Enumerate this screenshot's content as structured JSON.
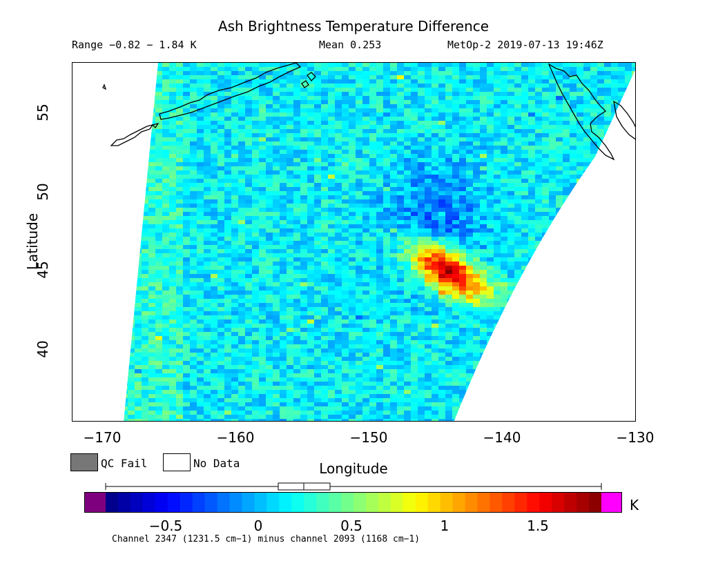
{
  "title": "Ash Brightness Temperature Difference",
  "range_text": "Range −0.82 − 1.84 K",
  "mean_text": "Mean 0.253",
  "satellite_text": "MetOp-2 2019-07-13 19:46Z",
  "map": {
    "lon_range": [
      -172.5,
      -130
    ],
    "lat_range": [
      35.5,
      58.2
    ],
    "x_ticks": [
      "−170",
      "−160",
      "−150",
      "−140",
      "−130"
    ],
    "x_tick_values": [
      -170,
      -160,
      -150,
      -140,
      -130
    ],
    "y_ticks": [
      "55",
      "50",
      "45",
      "40"
    ],
    "y_tick_values": [
      55,
      50,
      45,
      40
    ],
    "xlabel": "Longitude",
    "ylabel": "Latitude",
    "ash_feature_center": {
      "lon": -144.5,
      "lat": 45.2,
      "peak_value": 1.84
    }
  },
  "legend": {
    "qc_fail_label": "QC Fail",
    "qc_fail_color": "#777777",
    "no_data_label": "No Data",
    "no_data_color": "#ffffff"
  },
  "colorbar": {
    "ticks": [
      "−0.5",
      "0",
      "0.5",
      "1",
      "1.5"
    ],
    "tick_values": [
      -0.5,
      0,
      0.5,
      1,
      1.5
    ],
    "vmin": -0.82,
    "vmax": 1.84,
    "unit": "K",
    "underflow_color": "#7f007f",
    "overflow_color": "#ff00ff",
    "box_stats": {
      "q1": 0.11,
      "median": 0.25,
      "q3": 0.39
    }
  },
  "channel_label": "Channel 2347 (1231.5 cm−1) minus channel 2093 (1168 cm−1)"
}
